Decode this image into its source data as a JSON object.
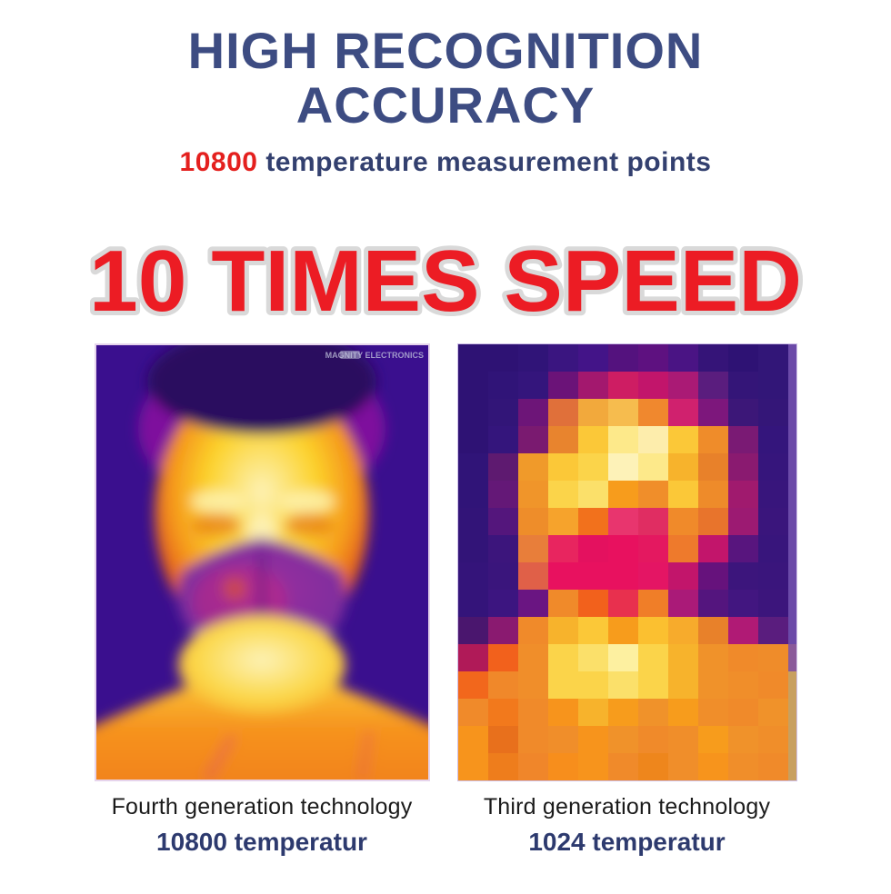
{
  "header": {
    "title_line1": "HIGH RECOGNITION",
    "title_line2": "ACCURACY",
    "points_value": "10800",
    "points_label": "temperature measurement points"
  },
  "speed_banner": {
    "text": "10 TIMES SPEED",
    "fill_color": "#ec1c24",
    "outline_color": "#d9d9d9"
  },
  "comparison": {
    "left": {
      "watermark": "MAGNITY ELECTRONICS",
      "caption": "Fourth generation technology",
      "spec": "10800 temperatur"
    },
    "right": {
      "caption": "Third generation technology",
      "spec": "1024 temperatur"
    }
  },
  "colors": {
    "title_navy": "#3d4c82",
    "subtitle_navy": "#33406f",
    "accent_red": "#e4201e",
    "caption_black": "#1b1b1b",
    "spec_navy": "#2d3a6e"
  },
  "thermal_palette": {
    "background": "#3a0f8e",
    "background_edge": "#4c1d96",
    "hair_dark": "#2a0a5e",
    "hair_halo": "#8a12a0",
    "face_bright": "#fdf2b8",
    "face_yellow": "#fcd22a",
    "face_orange": "#f5971c",
    "face_hot_edge": "#e0571c",
    "face_rim_magenta": "#c21f6e",
    "eye_shadow": "#e87f1c",
    "brow_bright": "#fdf0a8",
    "mask_center": "#9b2f9e",
    "mask_purple": "#7b2d9e",
    "mask_magenta": "#c82a7e",
    "mask_seam": "#5a1a80",
    "mask_hotspot": "#e05a2a",
    "neck_bright": "#fdf2b8",
    "neck_yellow": "#fbd84a",
    "neck_edge": "#f6a21e",
    "body_top": "#fbc838",
    "body_orange": "#f6921e",
    "body_deep": "#f07e1c",
    "shirt_streak": "#d8308a",
    "watermark_color": "#c3c6de"
  },
  "thermal_pixel_grid": {
    "cols": 12,
    "rows": [
      [
        "#2e1274",
        "#2e1274",
        "#301478",
        "#3a1580",
        "#431488",
        "#54127e",
        "#5e1180",
        "#4a1484",
        "#351478",
        "#2e1274",
        "#321678",
        "#6b4aa8"
      ],
      [
        "#2e1274",
        "#301478",
        "#34157c",
        "#6b1378",
        "#a3186e",
        "#ce1d63",
        "#c2156b",
        "#aa1a75",
        "#5a1d7e",
        "#341578",
        "#321678",
        "#6b4aa8"
      ],
      [
        "#2e1274",
        "#321578",
        "#6d1578",
        "#e0703a",
        "#f2a93c",
        "#f6bc4e",
        "#f0882e",
        "#d0216e",
        "#7d177c",
        "#3c1778",
        "#341678",
        "#6b4aa8"
      ],
      [
        "#2e1274",
        "#34157c",
        "#7a1a70",
        "#e8842e",
        "#fbc838",
        "#fde98a",
        "#fdedac",
        "#fbc838",
        "#ef8c2a",
        "#7a1a74",
        "#34157c",
        "#6b4aa8"
      ],
      [
        "#301478",
        "#5e1a70",
        "#f09a2a",
        "#fbc838",
        "#fbd44a",
        "#fdf2b8",
        "#fde98a",
        "#f7b32c",
        "#e8812a",
        "#8a1a70",
        "#36157c",
        "#6b4aa8"
      ],
      [
        "#301478",
        "#641877",
        "#f0952a",
        "#fbd44a",
        "#fbe06a",
        "#f79c1c",
        "#f08e2a",
        "#fbc838",
        "#ee8b2a",
        "#a01a6e",
        "#38157c",
        "#6b4aa8"
      ],
      [
        "#321478",
        "#54167c",
        "#ee8d2a",
        "#f6a32c",
        "#f2711c",
        "#e8356e",
        "#e02d62",
        "#f08a2a",
        "#e8742c",
        "#9c1a72",
        "#3a157c",
        "#6b4aa8"
      ],
      [
        "#321478",
        "#3c157c",
        "#e87e3a",
        "#e8255f",
        "#e4115f",
        "#e8115f",
        "#e41860",
        "#ee7a2c",
        "#c2156b",
        "#58157e",
        "#38157c",
        "#6b4aa8"
      ],
      [
        "#34147a",
        "#3a157c",
        "#e06048",
        "#e8115f",
        "#e8115f",
        "#e8115f",
        "#e41564",
        "#c2156b",
        "#66127c",
        "#3c157c",
        "#3a157c",
        "#6b4aa8"
      ],
      [
        "#34147a",
        "#3c1580",
        "#6a1582",
        "#f08a2a",
        "#f2611c",
        "#e8304e",
        "#f07e28",
        "#aa1a78",
        "#54157e",
        "#421680",
        "#3c157c",
        "#6b4aa8"
      ],
      [
        "#4a166e",
        "#8a1a70",
        "#f08a2a",
        "#f7b32c",
        "#fbc838",
        "#f79c1c",
        "#fbc030",
        "#f7ab2c",
        "#e8812a",
        "#b01a75",
        "#5a1d7e",
        "#6b4aa8"
      ],
      [
        "#b01a58",
        "#f2611c",
        "#f08e2a",
        "#fbd44a",
        "#fbe06a",
        "#fdf0a0",
        "#fbd44a",
        "#f7b32c",
        "#f0922a",
        "#f08a2a",
        "#ef8c2a",
        "#8a5a9a"
      ],
      [
        "#f2671c",
        "#f0882a",
        "#f08e2a",
        "#fbd44a",
        "#fbd44a",
        "#fbe06a",
        "#fbd44a",
        "#f7b32c",
        "#f0922a",
        "#f08e2a",
        "#f08a2a",
        "#c8a060"
      ],
      [
        "#f08a2a",
        "#f2791c",
        "#f08a2a",
        "#f7941c",
        "#f7b32c",
        "#f79c1c",
        "#f0922a",
        "#f79c1c",
        "#f08e2a",
        "#f08a2a",
        "#f0922a",
        "#c8a060"
      ],
      [
        "#f7941c",
        "#e8701c",
        "#f08a2a",
        "#f08e2a",
        "#f7941c",
        "#f0922a",
        "#f08a2a",
        "#f08e2a",
        "#f79c1c",
        "#f0922a",
        "#f08e2a",
        "#c8a060"
      ],
      [
        "#f7941c",
        "#ee7d1c",
        "#f0862a",
        "#f78e1c",
        "#f7941c",
        "#f08a2a",
        "#ee861c",
        "#f08e2a",
        "#f7941c",
        "#f08e2a",
        "#f08a2a",
        "#c8a060"
      ]
    ]
  }
}
